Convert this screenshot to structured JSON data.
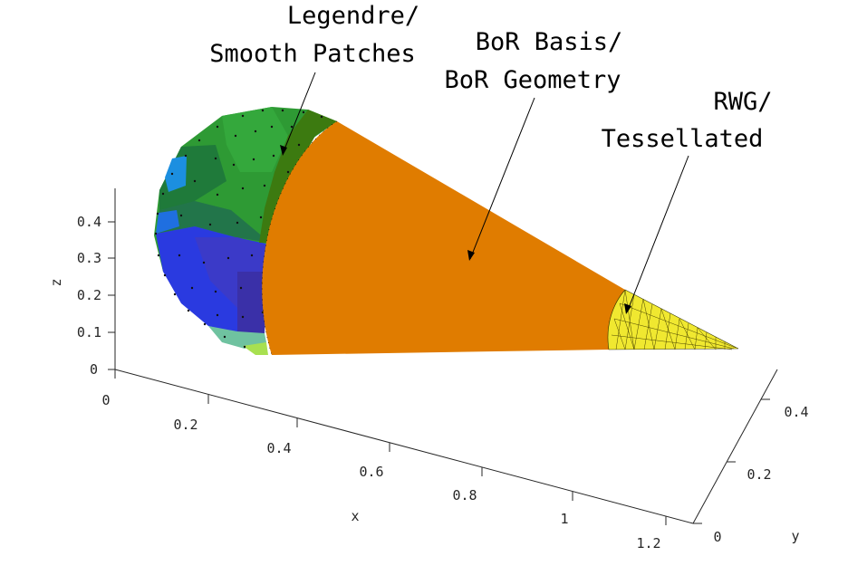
{
  "annotations": [
    {
      "line1": "Legendre/",
      "line2": "Smooth Patches"
    },
    {
      "line1": "BoR Basis/",
      "line2": "BoR Geometry"
    },
    {
      "line1": "RWG/",
      "line2": "Tessellated"
    }
  ],
  "axes": {
    "x": {
      "label": "x",
      "ticks": [
        "0",
        "0.2",
        "0.4",
        "0.6",
        "0.8",
        "1",
        "1.2"
      ]
    },
    "y": {
      "label": "y",
      "ticks": [
        "0",
        "0.2",
        "0.4"
      ]
    },
    "z": {
      "label": "z",
      "ticks": [
        "0",
        "0.1",
        "0.2",
        "0.3",
        "0.4"
      ]
    }
  },
  "colors": {
    "bor_cone": "#e07c00",
    "rwg_tip": "#f0e830",
    "sphere_green": "#2e9a34",
    "sphere_dark_green": "#1f7a3a",
    "sphere_blue": "#2a3ae0",
    "sphere_cyan": "#1c8fe0",
    "sphere_band": "#3c7a10"
  },
  "icons": {
    "annotation_pointer": "arrow-icon"
  }
}
